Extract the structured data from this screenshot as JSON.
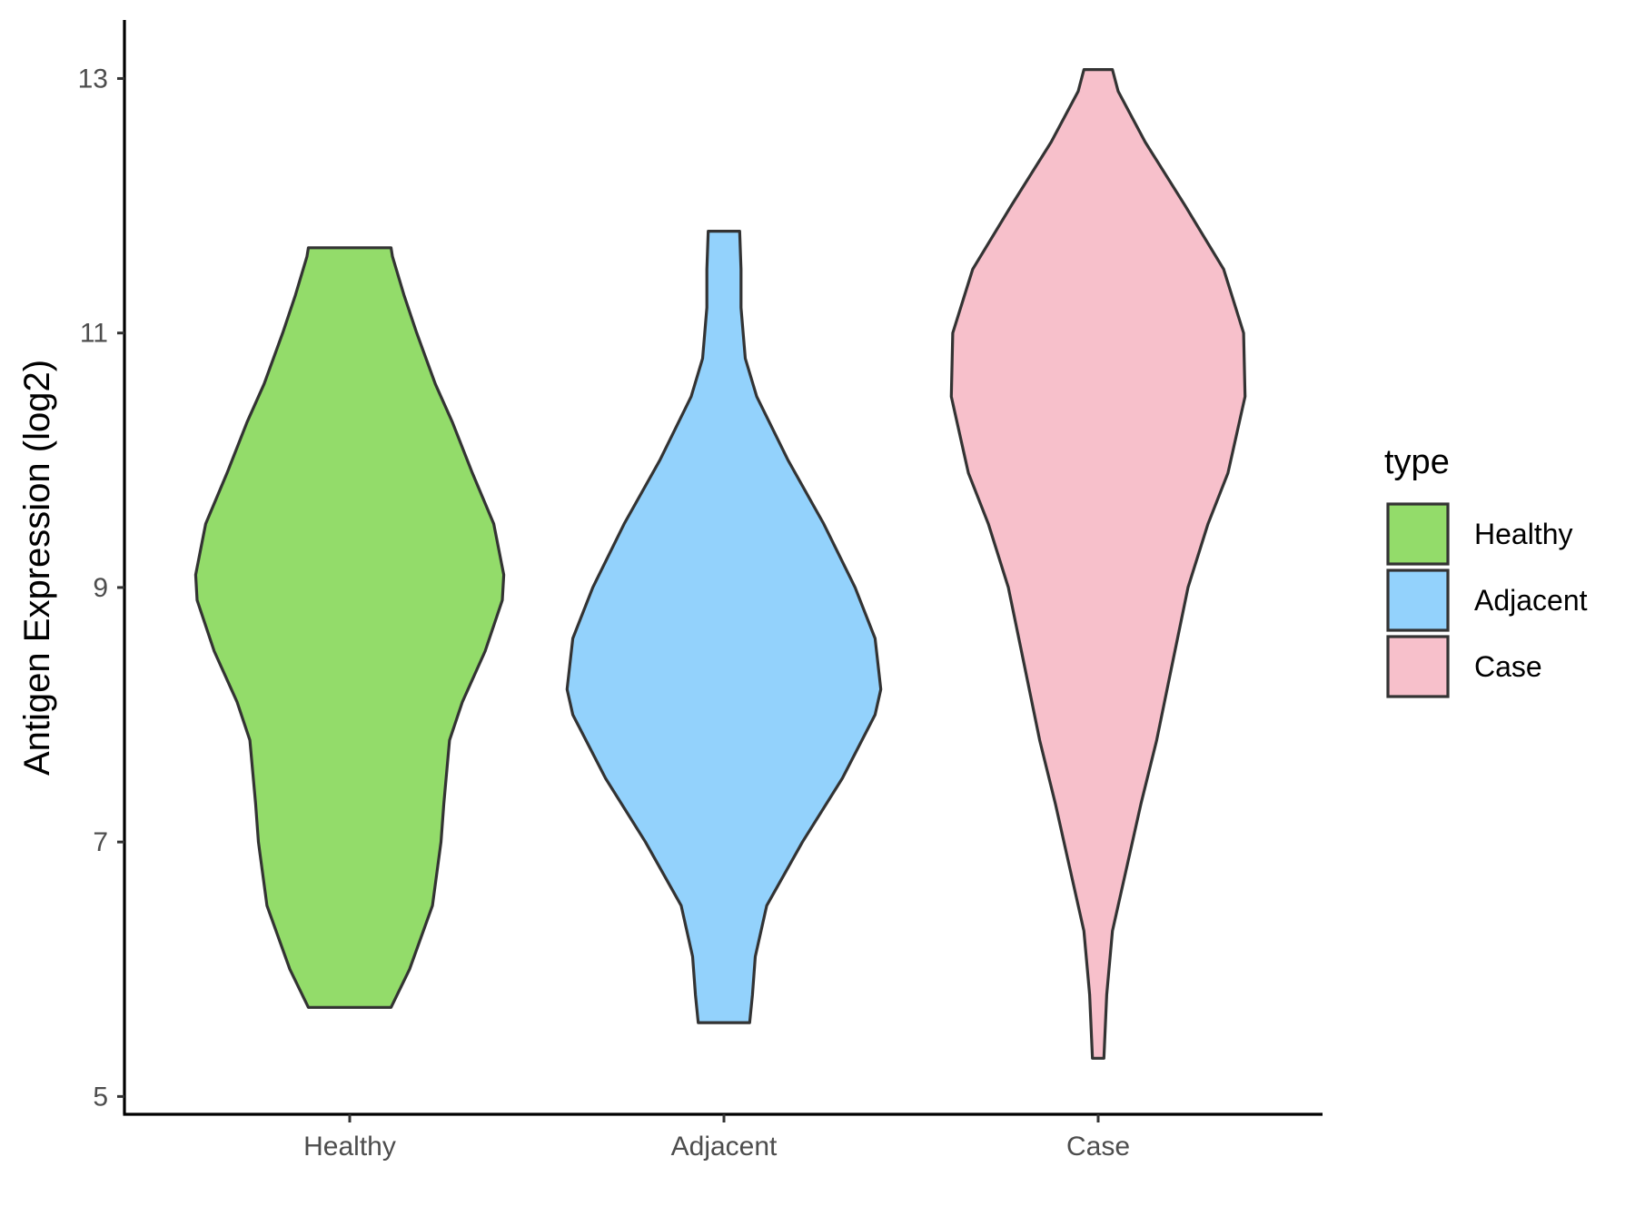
{
  "chart_data": {
    "type": "violin",
    "ylabel": "Antigen Expression (log2)",
    "xlabel": "",
    "ylim": [
      4.86,
      13.46
    ],
    "yticks": [
      5,
      7,
      9,
      11,
      13
    ],
    "categories": [
      "Healthy",
      "Adjacent",
      "Case"
    ],
    "legend": {
      "title": "type",
      "placement": "right",
      "entries": [
        "Healthy",
        "Adjacent",
        "Case"
      ]
    },
    "colors": {
      "Healthy": "#93dc6a",
      "Adjacent": "#93d2fc",
      "Case": "#f7c0cb",
      "outline": "#333333"
    },
    "series": [
      {
        "name": "Healthy",
        "min": 5.7,
        "max": 11.67,
        "density": [
          [
            5.7,
            0.29
          ],
          [
            6.0,
            0.42
          ],
          [
            6.5,
            0.58
          ],
          [
            7.0,
            0.64
          ],
          [
            7.3,
            0.66
          ],
          [
            7.8,
            0.7
          ],
          [
            8.1,
            0.79
          ],
          [
            8.5,
            0.95
          ],
          [
            8.9,
            1.07
          ],
          [
            9.1,
            1.08
          ],
          [
            9.5,
            1.01
          ],
          [
            9.9,
            0.86
          ],
          [
            10.3,
            0.72
          ],
          [
            10.6,
            0.6
          ],
          [
            11.0,
            0.47
          ],
          [
            11.3,
            0.38
          ],
          [
            11.6,
            0.3
          ],
          [
            11.67,
            0.29
          ]
        ]
      },
      {
        "name": "Adjacent",
        "min": 5.58,
        "max": 11.8,
        "density": [
          [
            5.58,
            0.18
          ],
          [
            5.8,
            0.2
          ],
          [
            6.1,
            0.22
          ],
          [
            6.5,
            0.3
          ],
          [
            7.0,
            0.55
          ],
          [
            7.5,
            0.83
          ],
          [
            8.0,
            1.06
          ],
          [
            8.2,
            1.1
          ],
          [
            8.6,
            1.06
          ],
          [
            9.0,
            0.92
          ],
          [
            9.5,
            0.7
          ],
          [
            10.0,
            0.45
          ],
          [
            10.5,
            0.23
          ],
          [
            10.8,
            0.15
          ],
          [
            11.2,
            0.12
          ],
          [
            11.5,
            0.12
          ],
          [
            11.8,
            0.11
          ]
        ]
      },
      {
        "name": "Case",
        "min": 5.3,
        "max": 13.07,
        "density": [
          [
            5.3,
            0.04
          ],
          [
            5.8,
            0.06
          ],
          [
            6.3,
            0.1
          ],
          [
            6.8,
            0.2
          ],
          [
            7.3,
            0.3
          ],
          [
            7.8,
            0.41
          ],
          [
            8.4,
            0.52
          ],
          [
            9.0,
            0.63
          ],
          [
            9.5,
            0.77
          ],
          [
            9.9,
            0.91
          ],
          [
            10.5,
            1.03
          ],
          [
            11.0,
            1.02
          ],
          [
            11.5,
            0.88
          ],
          [
            12.0,
            0.61
          ],
          [
            12.5,
            0.33
          ],
          [
            12.9,
            0.14
          ],
          [
            13.07,
            0.1
          ]
        ]
      }
    ]
  }
}
